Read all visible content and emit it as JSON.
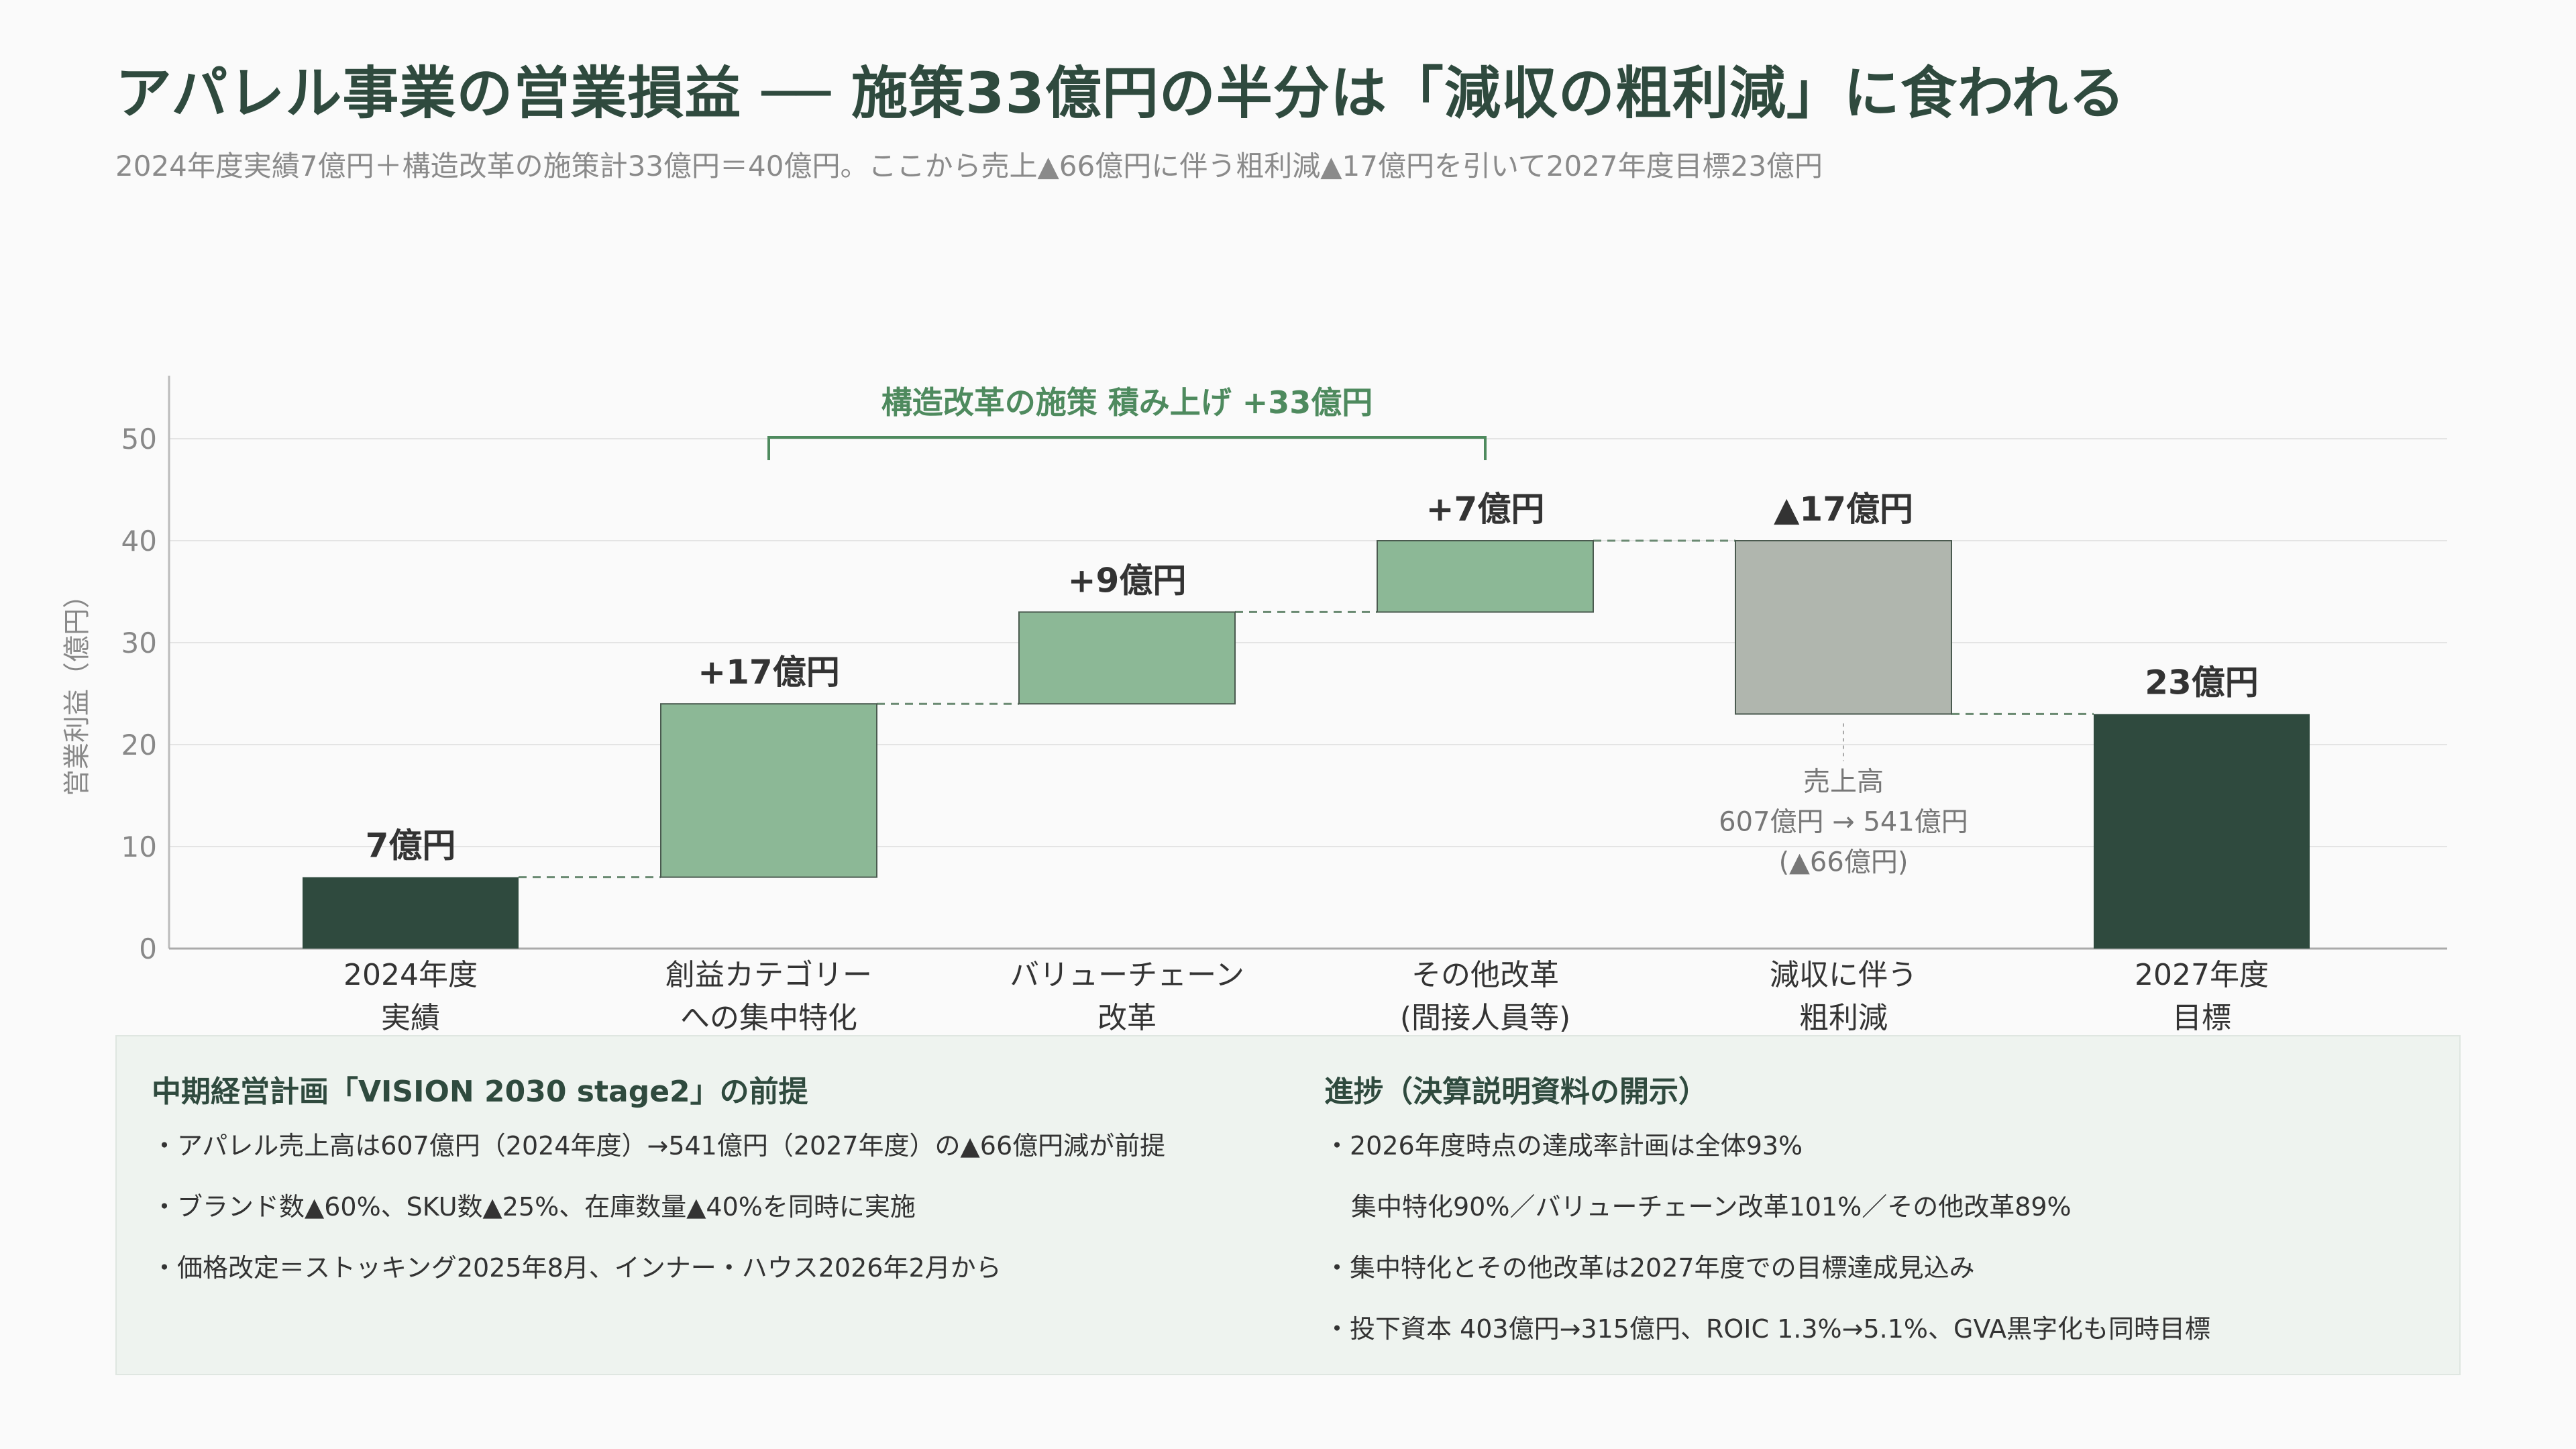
{
  "title": "アパレル事業の営業損益 ── 施策33億円の半分は「減収の粗利減」に食われる",
  "subtitle": "2024年度実績7億円＋構造改革の施策計33億円＝40億円。ここから売上▲66億円に伴う粗利減▲17億円を引いて2027年度目標23億円",
  "chart_data": {
    "type": "bar",
    "subtype": "waterfall",
    "ylabel": "営業利益（億円）",
    "ylim": [
      0,
      50
    ],
    "yticks": [
      0,
      10,
      20,
      30,
      40,
      50
    ],
    "grid": true,
    "categories": [
      [
        "2024年度",
        "実績"
      ],
      [
        "創益カテゴリー",
        "への集中特化"
      ],
      [
        "バリューチェーン",
        "改革"
      ],
      [
        "その他改革",
        "(間接人員等)"
      ],
      [
        "減収に伴う",
        "粗利減"
      ],
      [
        "2027年度",
        "目標"
      ]
    ],
    "bars": [
      {
        "kind": "total",
        "start": 0,
        "end": 7,
        "label": "7億円",
        "color": "#2f4a3e"
      },
      {
        "kind": "increase",
        "start": 7,
        "end": 24,
        "label": "+17億円",
        "color": "#8cb896"
      },
      {
        "kind": "increase",
        "start": 24,
        "end": 33,
        "label": "+9億円",
        "color": "#8cb896"
      },
      {
        "kind": "increase",
        "start": 33,
        "end": 40,
        "label": "+7億円",
        "color": "#8cb896"
      },
      {
        "kind": "decrease",
        "start": 40,
        "end": 23,
        "label": "▲17億円",
        "color": "#b0b6ae"
      },
      {
        "kind": "total",
        "start": 0,
        "end": 23,
        "label": "23億円",
        "color": "#2f4a3e"
      }
    ],
    "bracket": {
      "from_index": 1,
      "to_index": 3,
      "label": "構造改革の施策 積み上げ +33億円",
      "color": "#4e8a5e"
    },
    "annotation": {
      "bar_index": 4,
      "lines": [
        "売上高",
        "607億円 → 541億円",
        "(▲66億円)"
      ]
    }
  },
  "footer": {
    "left": {
      "heading": "中期経営計画「VISION 2030 stage2」の前提",
      "items": [
        "・アパレル売上高は607億円（2024年度）→541億円（2027年度）の▲66億円減が前提",
        "・ブランド数▲60%、SKU数▲25%、在庫数量▲40%を同時に実施",
        "・価格改定＝ストッキング2025年8月、インナー・ハウス2026年2月から"
      ]
    },
    "right": {
      "heading": "進捗（決算説明資料の開示）",
      "items": [
        "・2026年度時点の達成率計画は全体93%",
        "集中特化90%／バリューチェーン改革101%／その他改革89%",
        "・集中特化とその他改革は2027年度での目標達成見込み",
        "・投下資本 403億円→315億円、ROIC 1.3%→5.1%、GVA黒字化も同時目標"
      ]
    }
  }
}
